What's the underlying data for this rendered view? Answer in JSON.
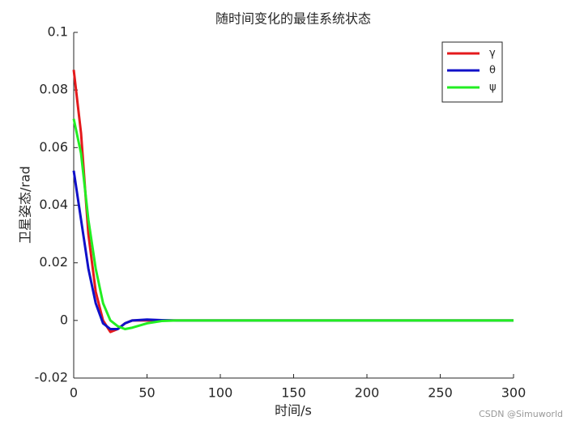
{
  "chart_data": {
    "type": "line",
    "title": "随时间变化的最佳系统状态",
    "x_label": "时间/s",
    "y_label": "卫星姿态/rad",
    "watermark": "CSDN @Simuworld",
    "x": [
      0,
      5,
      10,
      15,
      20,
      25,
      30,
      35,
      40,
      50,
      60,
      70,
      100,
      150,
      200,
      250,
      300
    ],
    "series": [
      {
        "name": "γ",
        "color": "#e41a1c",
        "values": [
          0.087,
          0.065,
          0.03,
          0.01,
          0.0,
          -0.004,
          -0.003,
          -0.001,
          0,
          0,
          0,
          0,
          0,
          0,
          0,
          0,
          0
        ]
      },
      {
        "name": "θ",
        "color": "#1010c8",
        "values": [
          0.052,
          0.035,
          0.018,
          0.006,
          -0.001,
          -0.003,
          -0.003,
          -0.001,
          0,
          0.0003,
          0.0001,
          0,
          0,
          0,
          0,
          0,
          0
        ]
      },
      {
        "name": "ψ",
        "color": "#22ee22",
        "values": [
          0.07,
          0.058,
          0.035,
          0.018,
          0.006,
          0,
          -0.002,
          -0.003,
          -0.0025,
          -0.001,
          -0.0002,
          0,
          0,
          0,
          0,
          0,
          0
        ]
      }
    ],
    "xlim": [
      0,
      300
    ],
    "xticks": [
      0,
      50,
      100,
      150,
      200,
      250,
      300
    ],
    "ylim": [
      -0.02,
      0.1
    ],
    "yticks": [
      -0.02,
      0,
      0.02,
      0.04,
      0.06,
      0.08,
      0.1
    ],
    "legend": "top-right"
  }
}
